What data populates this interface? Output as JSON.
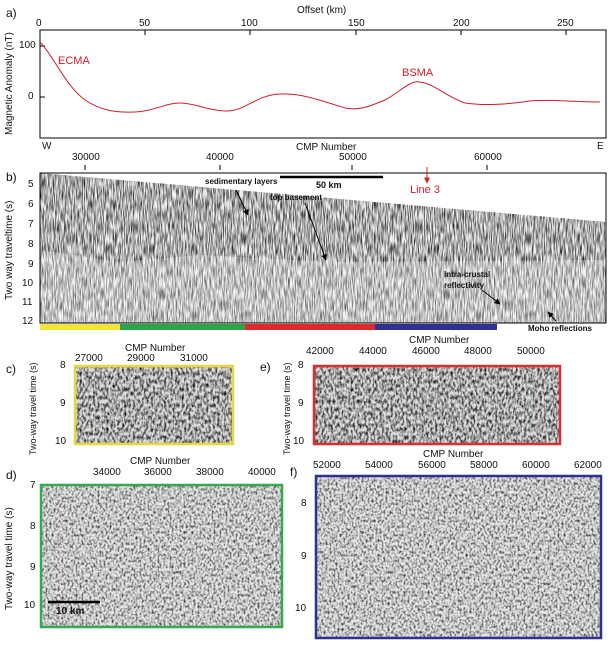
{
  "panel_a": {
    "letter": "a)",
    "x_title": "Offset (km)",
    "x_ticks": [
      "0",
      "50",
      "100",
      "150",
      "200",
      "250"
    ],
    "y_title": "Magnetic Anomaly (nT)",
    "y_ticks": [
      "100",
      "0"
    ],
    "left_end": "W",
    "right_end": "E",
    "label_ecma": "ECMA",
    "label_bsma": "BSMA",
    "curve_color": "#d0202a"
  },
  "panel_b": {
    "letter": "b)",
    "x_title": "CMP Number",
    "x_ticks": [
      "30000",
      "40000",
      "50000",
      "60000"
    ],
    "y_title": "Two way traveltime (s)",
    "y_ticks": [
      "5",
      "6",
      "7",
      "8",
      "9",
      "10",
      "11",
      "12"
    ],
    "scale_label": "50 km",
    "line_label": "Line 3",
    "annotations": {
      "sedimentary": "sedimentary layers",
      "top_basement": "top basement",
      "intra_crustal": "Intra-crustal\nreflectivity",
      "moho": "Moho reflections"
    },
    "color_bar": [
      "#f2e43a",
      "#2aa54a",
      "#e02a2a",
      "#2f2f94"
    ]
  },
  "panel_c": {
    "letter": "c)",
    "x_title": "CMP Number",
    "x_ticks": [
      "27000",
      "29000",
      "31000"
    ],
    "y_title": "Two-way travel time (s)",
    "y_ticks": [
      "8",
      "9",
      "10"
    ],
    "frame_color": "#e8d840"
  },
  "panel_d": {
    "letter": "d)",
    "x_title": "CMP Number",
    "x_ticks": [
      "34000",
      "36000",
      "38000",
      "40000"
    ],
    "y_title": "Two-way travel time (s)",
    "y_ticks": [
      "7",
      "8",
      "9",
      "10"
    ],
    "scale_label": "10 km",
    "frame_color": "#34a853"
  },
  "panel_e": {
    "letter": "e)",
    "x_title": "CMP Number",
    "x_ticks": [
      "42000",
      "44000",
      "46000",
      "48000",
      "50000"
    ],
    "y_title": "Two-way travel time (s)",
    "y_ticks": [
      "8",
      "9",
      "10"
    ],
    "frame_color": "#d93030"
  },
  "panel_f": {
    "letter": "f)",
    "x_title": "CMP Number",
    "x_ticks": [
      "52000",
      "54000",
      "56000",
      "58000",
      "60000",
      "62000"
    ],
    "y_ticks": [
      "8",
      "9",
      "10"
    ],
    "frame_color": "#2f3090"
  }
}
